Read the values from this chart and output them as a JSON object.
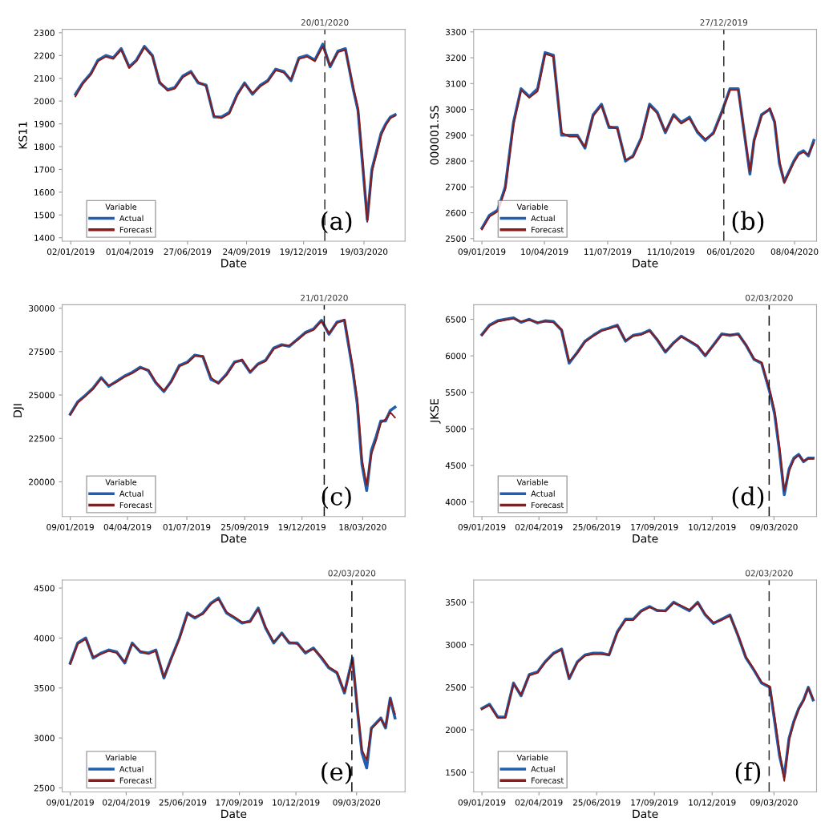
{
  "chart_data": [
    {
      "type": "line",
      "xlabel": "Date",
      "ylabel": "KS11",
      "legend_title": "Variable",
      "legend": "bottom left",
      "grid": false,
      "annotations": [
        "(a)"
      ],
      "x": [
        "2019-01-09",
        "2019-01-20",
        "2019-02-01",
        "2019-02-12",
        "2019-02-24",
        "2019-03-07",
        "2019-03-19",
        "2019-03-31",
        "2019-04-11",
        "2019-04-23",
        "2019-05-05",
        "2019-05-16",
        "2019-05-28",
        "2019-06-08",
        "2019-06-20",
        "2019-07-02",
        "2019-07-13",
        "2019-07-25",
        "2019-08-06",
        "2019-08-17",
        "2019-08-29",
        "2019-09-10",
        "2019-09-21",
        "2019-10-03",
        "2019-10-15",
        "2019-10-26",
        "2019-11-07",
        "2019-11-19",
        "2019-11-30",
        "2019-12-12",
        "2019-12-24",
        "2020-01-05",
        "2020-01-17",
        "2020-01-28",
        "2020-02-09",
        "2020-02-20",
        "2020-03-03",
        "2020-03-10",
        "2020-03-17",
        "2020-03-24",
        "2020-03-31",
        "2020-04-07",
        "2020-04-14",
        "2020-04-21",
        "2020-04-28",
        "2020-05-05"
      ],
      "xlim": [
        "2018-12-20",
        "2020-05-20"
      ],
      "xticks": [
        {
          "value": "2019-01-02",
          "label": "02/01/2019"
        },
        {
          "value": "2019-04-01",
          "label": "01/04/2019"
        },
        {
          "value": "2019-06-27",
          "label": "27/06/2019"
        },
        {
          "value": "2019-09-24",
          "label": "24/09/2019"
        },
        {
          "value": "2019-12-19",
          "label": "19/12/2019"
        },
        {
          "value": "2020-03-19",
          "label": "19/03/2020"
        }
      ],
      "ylim": [
        1385,
        2315
      ],
      "yticks": [
        1400,
        1500,
        1600,
        1700,
        1800,
        1900,
        2000,
        2100,
        2200,
        2300
      ],
      "ref_lines": [
        {
          "axis": "x",
          "value": "2020-01-20",
          "label": "20/01/2020",
          "line_style": "dashed",
          "color": "#333333"
        }
      ],
      "series": [
        {
          "name": "Actual",
          "color": "#1f5fad",
          "values": [
            2030,
            2080,
            2120,
            2180,
            2200,
            2190,
            2230,
            2150,
            2180,
            2240,
            2200,
            2080,
            2050,
            2060,
            2110,
            2130,
            2080,
            2070,
            1930,
            1930,
            1950,
            2030,
            2080,
            2030,
            2070,
            2090,
            2140,
            2130,
            2090,
            2190,
            2200,
            2180,
            2250,
            2150,
            2220,
            2230,
            2050,
            1960,
            1720,
            1480,
            1700,
            1780,
            1860,
            1900,
            1930,
            1940
          ]
        },
        {
          "name": "Forecast",
          "color": "#8b1a1a",
          "values": [
            2020,
            2075,
            2115,
            2175,
            2195,
            2185,
            2225,
            2145,
            2175,
            2235,
            2195,
            2085,
            2045,
            2055,
            2105,
            2125,
            2085,
            2065,
            1935,
            1925,
            1945,
            2025,
            2075,
            2035,
            2065,
            2085,
            2135,
            2125,
            2095,
            2185,
            2195,
            2175,
            2240,
            2155,
            2215,
            2225,
            2060,
            1970,
            1740,
            1470,
            1690,
            1770,
            1850,
            1895,
            1925,
            1935
          ]
        }
      ]
    },
    {
      "type": "line",
      "xlabel": "Date",
      "ylabel": "000001.SS",
      "legend_title": "Variable",
      "legend": "bottom left",
      "grid": false,
      "annotations": [
        "(b)"
      ],
      "x": [
        "2019-01-09",
        "2019-01-20",
        "2019-02-01",
        "2019-02-12",
        "2019-02-24",
        "2019-03-07",
        "2019-03-19",
        "2019-03-31",
        "2019-04-11",
        "2019-04-23",
        "2019-05-05",
        "2019-05-16",
        "2019-05-28",
        "2019-06-08",
        "2019-06-20",
        "2019-07-02",
        "2019-07-13",
        "2019-07-25",
        "2019-08-06",
        "2019-08-17",
        "2019-08-29",
        "2019-09-10",
        "2019-09-21",
        "2019-10-03",
        "2019-10-15",
        "2019-10-26",
        "2019-11-07",
        "2019-11-19",
        "2019-11-30",
        "2019-12-12",
        "2019-12-24",
        "2020-01-05",
        "2020-01-17",
        "2020-02-03",
        "2020-02-09",
        "2020-02-20",
        "2020-03-03",
        "2020-03-10",
        "2020-03-17",
        "2020-03-24",
        "2020-03-31",
        "2020-04-07",
        "2020-04-14",
        "2020-04-21",
        "2020-04-28",
        "2020-05-06"
      ],
      "xlim": [
        "2018-12-28",
        "2020-05-10"
      ],
      "xticks": [
        {
          "value": "2019-01-09",
          "label": "09/01/2019"
        },
        {
          "value": "2019-04-10",
          "label": "10/04/2019"
        },
        {
          "value": "2019-07-11",
          "label": "11/07/2019"
        },
        {
          "value": "2019-10-11",
          "label": "11/10/2019"
        },
        {
          "value": "2020-01-06",
          "label": "06/01/2020"
        },
        {
          "value": "2020-04-08",
          "label": "08/04/2020"
        }
      ],
      "ylim": [
        2490,
        3310
      ],
      "yticks": [
        2500,
        2600,
        2700,
        2800,
        2900,
        3000,
        3100,
        3200,
        3300
      ],
      "ref_lines": [
        {
          "axis": "x",
          "value": "2019-12-27",
          "label": "27/12/2019",
          "line_style": "dashed",
          "color": "#333333"
        }
      ],
      "series": [
        {
          "name": "Actual",
          "color": "#1f5fad",
          "values": [
            2540,
            2590,
            2610,
            2700,
            2950,
            3080,
            3050,
            3080,
            3220,
            3210,
            2900,
            2900,
            2900,
            2850,
            2980,
            3020,
            2930,
            2930,
            2800,
            2820,
            2890,
            3020,
            2990,
            2910,
            2980,
            2950,
            2970,
            2910,
            2880,
            2910,
            2990,
            3080,
            3080,
            2750,
            2880,
            2980,
            3000,
            2950,
            2790,
            2720,
            2760,
            2800,
            2830,
            2840,
            2820,
            2880
          ]
        },
        {
          "name": "Forecast",
          "color": "#8b1a1a",
          "values": [
            2535,
            2585,
            2605,
            2690,
            2940,
            3075,
            3045,
            3070,
            3215,
            3205,
            2910,
            2895,
            2895,
            2855,
            2975,
            3015,
            2935,
            2925,
            2805,
            2815,
            2885,
            3015,
            2985,
            2915,
            2975,
            2945,
            2965,
            2915,
            2885,
            2905,
            2985,
            3075,
            3075,
            2760,
            2875,
            2975,
            3005,
            2955,
            2800,
            2715,
            2755,
            2795,
            2825,
            2835,
            2825,
            2870
          ]
        }
      ]
    },
    {
      "type": "line",
      "xlabel": "Date",
      "ylabel": "DJI",
      "legend_title": "Variable",
      "legend": "bottom left",
      "grid": false,
      "annotations": [
        "(c)"
      ],
      "x": [
        "2019-01-09",
        "2019-01-20",
        "2019-02-01",
        "2019-02-12",
        "2019-02-24",
        "2019-03-07",
        "2019-03-19",
        "2019-03-31",
        "2019-04-11",
        "2019-04-23",
        "2019-05-05",
        "2019-05-16",
        "2019-05-28",
        "2019-06-08",
        "2019-06-20",
        "2019-07-02",
        "2019-07-13",
        "2019-07-25",
        "2019-08-06",
        "2019-08-17",
        "2019-08-29",
        "2019-09-10",
        "2019-09-21",
        "2019-10-03",
        "2019-10-15",
        "2019-10-26",
        "2019-11-07",
        "2019-11-19",
        "2019-11-30",
        "2019-12-12",
        "2019-12-24",
        "2020-01-05",
        "2020-01-17",
        "2020-01-28",
        "2020-02-09",
        "2020-02-20",
        "2020-03-03",
        "2020-03-10",
        "2020-03-17",
        "2020-03-24",
        "2020-03-31",
        "2020-04-07",
        "2020-04-14",
        "2020-04-21",
        "2020-04-28",
        "2020-05-05"
      ],
      "xlim": [
        "2018-12-28",
        "2020-05-20"
      ],
      "xticks": [
        {
          "value": "2019-01-09",
          "label": "09/01/2019"
        },
        {
          "value": "2019-04-04",
          "label": "04/04/2019"
        },
        {
          "value": "2019-07-01",
          "label": "01/07/2019"
        },
        {
          "value": "2019-09-25",
          "label": "25/09/2019"
        },
        {
          "value": "2019-12-19",
          "label": "19/12/2019"
        },
        {
          "value": "2020-03-18",
          "label": "18/03/2020"
        }
      ],
      "ylim": [
        18000,
        30200
      ],
      "yticks": [
        20000,
        22500,
        25000,
        27500,
        30000
      ],
      "ref_lines": [
        {
          "axis": "x",
          "value": "2020-01-21",
          "label": "21/01/2020",
          "line_style": "dashed",
          "color": "#111111"
        }
      ],
      "series": [
        {
          "name": "Actual",
          "color": "#1f5fad",
          "values": [
            23900,
            24600,
            25000,
            25400,
            26000,
            25500,
            25800,
            26100,
            26300,
            26600,
            26400,
            25700,
            25200,
            25800,
            26700,
            26900,
            27300,
            27200,
            25900,
            25700,
            26200,
            26900,
            27000,
            26300,
            26800,
            27000,
            27700,
            27900,
            27800,
            28200,
            28600,
            28800,
            29300,
            28500,
            29200,
            29300,
            26500,
            24500,
            21000,
            19500,
            21800,
            22600,
            23500,
            23500,
            24100,
            24300
          ]
        },
        {
          "name": "Forecast",
          "color": "#8b1a1a",
          "values": [
            23850,
            24550,
            24950,
            25350,
            25950,
            25550,
            25750,
            26050,
            26250,
            26550,
            26450,
            25750,
            25250,
            25750,
            26650,
            26850,
            27250,
            27250,
            26000,
            25650,
            26150,
            26850,
            27050,
            26350,
            26750,
            26950,
            27650,
            27850,
            27850,
            28150,
            28550,
            28750,
            29250,
            28550,
            29150,
            29350,
            26700,
            24800,
            21300,
            19800,
            21600,
            22400,
            23400,
            23600,
            24000,
            23700
          ]
        }
      ]
    },
    {
      "type": "line",
      "xlabel": "Date",
      "ylabel": "JKSE",
      "legend_title": "Variable",
      "legend": "bottom left",
      "grid": false,
      "annotations": [
        "(d)"
      ],
      "x": [
        "2019-01-09",
        "2019-01-20",
        "2019-02-01",
        "2019-02-12",
        "2019-02-24",
        "2019-03-07",
        "2019-03-19",
        "2019-03-31",
        "2019-04-11",
        "2019-04-23",
        "2019-05-05",
        "2019-05-16",
        "2019-05-28",
        "2019-06-08",
        "2019-06-20",
        "2019-07-02",
        "2019-07-13",
        "2019-07-25",
        "2019-08-06",
        "2019-08-17",
        "2019-08-29",
        "2019-09-10",
        "2019-09-21",
        "2019-10-03",
        "2019-10-15",
        "2019-10-26",
        "2019-11-07",
        "2019-11-19",
        "2019-11-30",
        "2019-12-12",
        "2019-12-24",
        "2020-01-05",
        "2020-01-17",
        "2020-01-28",
        "2020-02-09",
        "2020-02-20",
        "2020-03-03",
        "2020-03-10",
        "2020-03-17",
        "2020-03-24",
        "2020-03-31",
        "2020-04-07",
        "2020-04-14",
        "2020-04-21",
        "2020-04-28",
        "2020-05-05"
      ],
      "xlim": [
        "2018-12-28",
        "2020-05-10"
      ],
      "xticks": [
        {
          "value": "2019-01-09",
          "label": "09/01/2019"
        },
        {
          "value": "2019-04-02",
          "label": "02/04/2019"
        },
        {
          "value": "2019-06-25",
          "label": "25/06/2019"
        },
        {
          "value": "2019-09-17",
          "label": "17/09/2019"
        },
        {
          "value": "2019-12-10",
          "label": "10/12/2019"
        },
        {
          "value": "2020-03-09",
          "label": "09/03/2020"
        }
      ],
      "ylim": [
        3800,
        6700
      ],
      "yticks": [
        4000,
        4500,
        5000,
        5500,
        6000,
        6500
      ],
      "ref_lines": [
        {
          "axis": "x",
          "value": "2020-03-02",
          "label": "02/03/2020",
          "line_style": "dashed",
          "color": "#111111"
        }
      ],
      "series": [
        {
          "name": "Actual",
          "color": "#1f5fad",
          "values": [
            6290,
            6420,
            6480,
            6500,
            6520,
            6460,
            6500,
            6450,
            6480,
            6470,
            6350,
            5900,
            6050,
            6200,
            6280,
            6350,
            6380,
            6420,
            6200,
            6280,
            6300,
            6350,
            6220,
            6050,
            6180,
            6270,
            6200,
            6130,
            6000,
            6150,
            6300,
            6280,
            6300,
            6150,
            5950,
            5900,
            5500,
            5200,
            4700,
            4100,
            4450,
            4600,
            4650,
            4550,
            4600,
            4600
          ]
        },
        {
          "name": "Forecast",
          "color": "#8b1a1a",
          "values": [
            6280,
            6410,
            6470,
            6490,
            6510,
            6470,
            6490,
            6460,
            6470,
            6460,
            6360,
            5920,
            6040,
            6190,
            6270,
            6340,
            6370,
            6410,
            6210,
            6270,
            6290,
            6340,
            6230,
            6060,
            6170,
            6260,
            6210,
            6140,
            6010,
            6140,
            6290,
            6290,
            6290,
            6160,
            5960,
            5910,
            5520,
            5250,
            4750,
            4150,
            4420,
            4580,
            4640,
            4560,
            4590,
            4590
          ]
        }
      ]
    },
    {
      "type": "line",
      "xlabel": "Date",
      "legend_title": "Variable",
      "legend": "bottom left",
      "grid": false,
      "annotations": [
        "(e)"
      ],
      "x": [
        "2019-01-09",
        "2019-01-20",
        "2019-02-01",
        "2019-02-12",
        "2019-02-24",
        "2019-03-07",
        "2019-03-19",
        "2019-03-31",
        "2019-04-11",
        "2019-04-23",
        "2019-05-05",
        "2019-05-16",
        "2019-05-28",
        "2019-06-08",
        "2019-06-20",
        "2019-07-02",
        "2019-07-13",
        "2019-07-25",
        "2019-08-06",
        "2019-08-17",
        "2019-08-29",
        "2019-09-10",
        "2019-09-21",
        "2019-10-03",
        "2019-10-15",
        "2019-10-26",
        "2019-11-07",
        "2019-11-19",
        "2019-11-30",
        "2019-12-12",
        "2019-12-24",
        "2020-01-05",
        "2020-01-17",
        "2020-01-28",
        "2020-02-09",
        "2020-02-20",
        "2020-03-03",
        "2020-03-10",
        "2020-03-17",
        "2020-03-24",
        "2020-03-31",
        "2020-04-07",
        "2020-04-14",
        "2020-04-21",
        "2020-04-28",
        "2020-05-05"
      ],
      "xlim": [
        "2018-12-28",
        "2020-05-20"
      ],
      "xticks": [
        {
          "value": "2019-01-09",
          "label": "09/01/2019"
        },
        {
          "value": "2019-04-02",
          "label": "02/04/2019"
        },
        {
          "value": "2019-06-25",
          "label": "25/06/2019"
        },
        {
          "value": "2019-09-17",
          "label": "17/09/2019"
        },
        {
          "value": "2019-12-10",
          "label": "10/12/2019"
        },
        {
          "value": "2020-03-09",
          "label": "09/03/2020"
        }
      ],
      "ylim": [
        2460,
        4580
      ],
      "yticks": [
        2500,
        3000,
        3500,
        4000,
        4500
      ],
      "ref_lines": [
        {
          "axis": "x",
          "value": "2020-03-02",
          "label": "02/03/2020",
          "line_style": "dashed",
          "color": "#111111"
        }
      ],
      "series": [
        {
          "name": "Actual",
          "color": "#1f5fad",
          "values": [
            3750,
            3950,
            4000,
            3800,
            3850,
            3880,
            3860,
            3750,
            3950,
            3860,
            3850,
            3880,
            3600,
            3800,
            4000,
            4250,
            4200,
            4250,
            4350,
            4400,
            4250,
            4200,
            4150,
            4170,
            4300,
            4100,
            3950,
            4050,
            3950,
            3950,
            3850,
            3900,
            3800,
            3700,
            3650,
            3450,
            3800,
            3300,
            2850,
            2700,
            3100,
            3150,
            3200,
            3100,
            3400,
            3200
          ]
        },
        {
          "name": "Forecast",
          "color": "#8b1a1a",
          "values": [
            3740,
            3940,
            3990,
            3810,
            3840,
            3870,
            3850,
            3760,
            3940,
            3870,
            3840,
            3870,
            3610,
            3790,
            3990,
            4240,
            4210,
            4240,
            4340,
            4390,
            4260,
            4210,
            4160,
            4160,
            4290,
            4110,
            3960,
            4040,
            3960,
            3940,
            3860,
            3890,
            3810,
            3710,
            3660,
            3460,
            3780,
            3320,
            2880,
            2780,
            3090,
            3140,
            3190,
            3110,
            3390,
            3240
          ]
        }
      ]
    },
    {
      "type": "line",
      "xlabel": "Date",
      "legend_title": "Variable",
      "legend": "bottom left",
      "grid": false,
      "annotations": [
        "(f)"
      ],
      "x": [
        "2019-01-09",
        "2019-01-20",
        "2019-02-01",
        "2019-02-12",
        "2019-02-24",
        "2019-03-07",
        "2019-03-19",
        "2019-03-31",
        "2019-04-11",
        "2019-04-23",
        "2019-05-05",
        "2019-05-16",
        "2019-05-28",
        "2019-06-08",
        "2019-06-20",
        "2019-07-02",
        "2019-07-13",
        "2019-07-25",
        "2019-08-06",
        "2019-08-17",
        "2019-08-29",
        "2019-09-10",
        "2019-09-21",
        "2019-10-03",
        "2019-10-15",
        "2019-10-26",
        "2019-11-07",
        "2019-11-19",
        "2019-11-30",
        "2019-12-12",
        "2019-12-24",
        "2020-01-05",
        "2020-01-17",
        "2020-01-28",
        "2020-02-09",
        "2020-02-20",
        "2020-03-03",
        "2020-03-10",
        "2020-03-17",
        "2020-03-24",
        "2020-03-31",
        "2020-04-07",
        "2020-04-14",
        "2020-04-21",
        "2020-04-28",
        "2020-05-05"
      ],
      "xlim": [
        "2018-12-28",
        "2020-05-10"
      ],
      "xticks": [
        {
          "value": "2019-01-09",
          "label": "09/01/2019"
        },
        {
          "value": "2019-04-02",
          "label": "02/04/2019"
        },
        {
          "value": "2019-06-25",
          "label": "25/06/2019"
        },
        {
          "value": "2019-09-17",
          "label": "17/09/2019"
        },
        {
          "value": "2019-12-10",
          "label": "10/12/2019"
        },
        {
          "value": "2020-03-09",
          "label": "09/03/2020"
        }
      ],
      "ylim": [
        1270,
        3760
      ],
      "yticks": [
        1500,
        2000,
        2500,
        3000,
        3500
      ],
      "ref_lines": [
        {
          "axis": "x",
          "value": "2020-03-02",
          "label": "02/03/2020",
          "line_style": "dashed",
          "color": "#333333"
        }
      ],
      "series": [
        {
          "name": "Actual",
          "color": "#1f5fad",
          "values": [
            2250,
            2300,
            2150,
            2150,
            2550,
            2400,
            2650,
            2680,
            2800,
            2900,
            2950,
            2600,
            2800,
            2880,
            2900,
            2900,
            2880,
            3150,
            3300,
            3300,
            3400,
            3450,
            3400,
            3400,
            3500,
            3450,
            3400,
            3500,
            3350,
            3250,
            3300,
            3350,
            3100,
            2850,
            2700,
            2550,
            2500,
            2100,
            1700,
            1450,
            1900,
            2100,
            2250,
            2350,
            2500,
            2350
          ]
        },
        {
          "name": "Forecast",
          "color": "#8b1a1a",
          "values": [
            2240,
            2290,
            2140,
            2140,
            2540,
            2410,
            2640,
            2670,
            2790,
            2890,
            2940,
            2610,
            2790,
            2870,
            2890,
            2890,
            2880,
            3140,
            3290,
            3290,
            3390,
            3440,
            3410,
            3390,
            3490,
            3460,
            3410,
            3490,
            3360,
            3260,
            3290,
            3340,
            3110,
            2860,
            2710,
            2560,
            2510,
            2150,
            1750,
            1400,
            1880,
            2090,
            2240,
            2340,
            2490,
            2360
          ]
        }
      ]
    }
  ]
}
